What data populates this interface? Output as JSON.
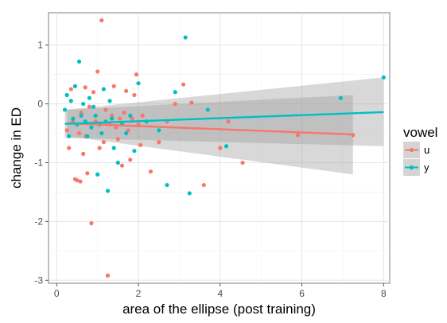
{
  "chart_data": {
    "type": "scatter",
    "xlabel": "area of the ellipse (post training)",
    "ylabel": "change in ED",
    "xlim": [
      -0.2,
      8.15
    ],
    "ylim": [
      -3.05,
      1.55
    ],
    "x_ticks": [
      0,
      2,
      4,
      6,
      8
    ],
    "y_ticks": [
      1,
      0,
      -1,
      -2,
      -3
    ],
    "grid": true,
    "legend": {
      "title": "vowel",
      "placement": "right"
    },
    "series": [
      {
        "name": "u",
        "color": "#F8766D",
        "points": [
          [
            0.25,
            -0.45
          ],
          [
            0.3,
            -0.75
          ],
          [
            0.35,
            0.25
          ],
          [
            0.4,
            -0.3
          ],
          [
            0.45,
            -1.28
          ],
          [
            0.5,
            -1.3
          ],
          [
            0.55,
            -0.5
          ],
          [
            0.58,
            -1.32
          ],
          [
            0.6,
            -0.15
          ],
          [
            0.65,
            -0.85
          ],
          [
            0.7,
            0.28
          ],
          [
            0.72,
            -0.55
          ],
          [
            0.75,
            -1.18
          ],
          [
            0.8,
            -0.05
          ],
          [
            0.85,
            -2.03
          ],
          [
            0.9,
            0.2
          ],
          [
            0.95,
            -0.3
          ],
          [
            1.0,
            0.55
          ],
          [
            1.05,
            -0.75
          ],
          [
            1.1,
            1.42
          ],
          [
            1.15,
            -0.65
          ],
          [
            1.2,
            -0.1
          ],
          [
            1.25,
            -2.92
          ],
          [
            1.3,
            -0.35
          ],
          [
            1.35,
            -0.2
          ],
          [
            1.4,
            0.3
          ],
          [
            1.45,
            -0.4
          ],
          [
            1.5,
            -0.6
          ],
          [
            1.55,
            -0.25
          ],
          [
            1.6,
            -1.05
          ],
          [
            1.65,
            -0.15
          ],
          [
            1.7,
            0.22
          ],
          [
            1.75,
            -0.45
          ],
          [
            1.8,
            -0.95
          ],
          [
            1.85,
            -0.25
          ],
          [
            1.9,
            0.15
          ],
          [
            1.95,
            0.5
          ],
          [
            2.0,
            -0.35
          ],
          [
            2.05,
            -0.7
          ],
          [
            2.1,
            -0.2
          ],
          [
            2.3,
            -1.15
          ],
          [
            2.5,
            -0.65
          ],
          [
            2.7,
            -0.3
          ],
          [
            2.9,
            0.0
          ],
          [
            3.1,
            0.33
          ],
          [
            3.3,
            0.02
          ],
          [
            3.6,
            -1.38
          ],
          [
            4.0,
            -0.75
          ],
          [
            4.2,
            -0.3
          ],
          [
            4.55,
            -1.0
          ],
          [
            5.9,
            -0.53
          ],
          [
            7.25,
            -0.53
          ]
        ],
        "fit": {
          "x": [
            0.25,
            7.25
          ],
          "y": [
            -0.33,
            -0.52
          ]
        },
        "band": {
          "x": [
            0.25,
            7.25
          ],
          "lower": [
            -0.55,
            -1.2
          ],
          "upper": [
            -0.1,
            0.15
          ]
        }
      },
      {
        "name": "y",
        "color": "#00BFC4",
        "points": [
          [
            0.2,
            -0.1
          ],
          [
            0.25,
            0.15
          ],
          [
            0.3,
            -0.55
          ],
          [
            0.35,
            0.05
          ],
          [
            0.4,
            -0.25
          ],
          [
            0.45,
            0.3
          ],
          [
            0.5,
            -0.35
          ],
          [
            0.55,
            0.72
          ],
          [
            0.6,
            -0.2
          ],
          [
            0.65,
            0.0
          ],
          [
            0.7,
            -0.3
          ],
          [
            0.75,
            -0.55
          ],
          [
            0.8,
            0.1
          ],
          [
            0.85,
            -0.4
          ],
          [
            0.9,
            -0.05
          ],
          [
            0.95,
            -0.2
          ],
          [
            1.0,
            -1.2
          ],
          [
            1.05,
            -0.35
          ],
          [
            1.1,
            -0.5
          ],
          [
            1.15,
            0.25
          ],
          [
            1.2,
            -0.3
          ],
          [
            1.25,
            -1.48
          ],
          [
            1.3,
            0.05
          ],
          [
            1.35,
            -0.25
          ],
          [
            1.4,
            -0.75
          ],
          [
            1.5,
            -1.0
          ],
          [
            1.6,
            -0.35
          ],
          [
            1.7,
            -0.5
          ],
          [
            1.8,
            -0.2
          ],
          [
            1.9,
            -0.8
          ],
          [
            2.0,
            0.35
          ],
          [
            2.2,
            -0.3
          ],
          [
            2.5,
            -0.45
          ],
          [
            2.7,
            -1.38
          ],
          [
            2.9,
            0.2
          ],
          [
            3.15,
            1.13
          ],
          [
            3.25,
            -1.52
          ],
          [
            3.7,
            -0.1
          ],
          [
            4.15,
            -0.72
          ],
          [
            6.95,
            0.1
          ],
          [
            8.0,
            0.45
          ]
        ],
        "fit": {
          "x": [
            0.2,
            8.0
          ],
          "y": [
            -0.34,
            -0.14
          ]
        },
        "band": {
          "x": [
            0.2,
            8.0
          ],
          "lower": [
            -0.58,
            -0.72
          ],
          "upper": [
            -0.1,
            0.45
          ]
        }
      }
    ]
  }
}
